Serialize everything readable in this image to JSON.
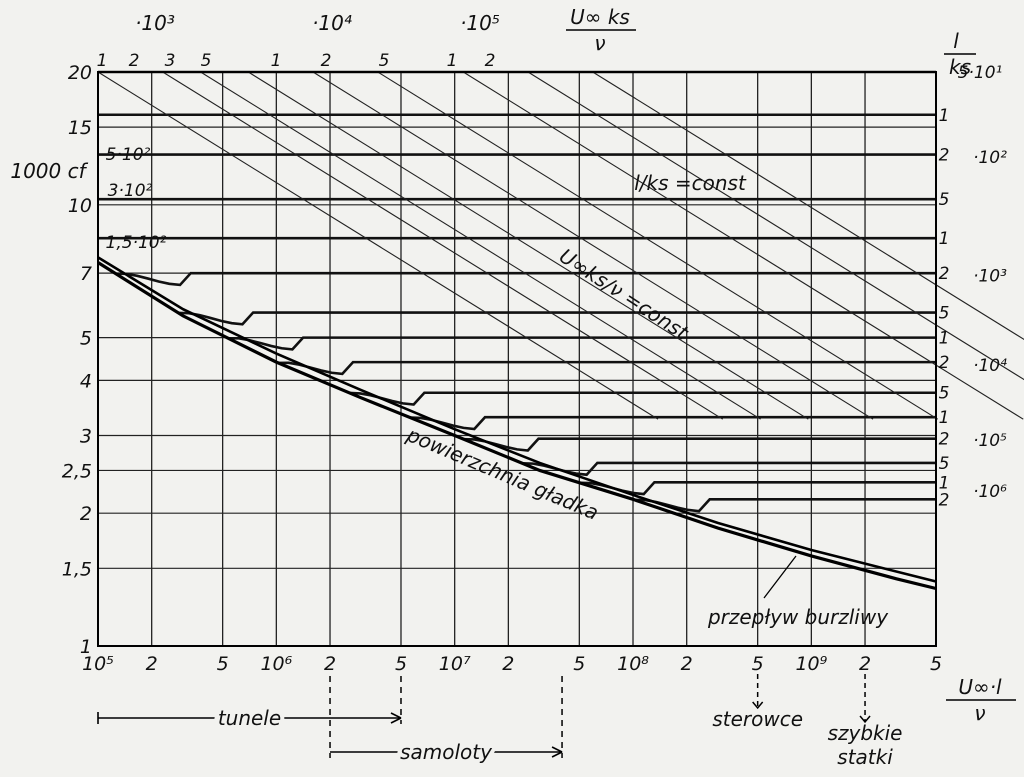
{
  "chart_data": {
    "type": "line",
    "title": "",
    "x_axis": {
      "scale": "log",
      "label_numerator": "U∞·l",
      "label_denominator": "ν",
      "range": [
        100000,
        5000000000
      ],
      "ticks": [
        {
          "value": 100000,
          "label": "10⁵"
        },
        {
          "value": 200000,
          "label": "2"
        },
        {
          "value": 500000,
          "label": "5"
        },
        {
          "value": 1000000,
          "label": "10⁶"
        },
        {
          "value": 2000000,
          "label": "2"
        },
        {
          "value": 5000000,
          "label": "5"
        },
        {
          "value": 10000000,
          "label": "10⁷"
        },
        {
          "value": 20000000,
          "label": "2"
        },
        {
          "value": 50000000,
          "label": "5"
        },
        {
          "value": 100000000,
          "label": "10⁸"
        },
        {
          "value": 200000000,
          "label": "2"
        },
        {
          "value": 500000000,
          "label": "5"
        },
        {
          "value": 1000000000,
          "label": "10⁹"
        },
        {
          "value": 2000000000,
          "label": "2"
        },
        {
          "value": 5000000000,
          "label": "5"
        }
      ]
    },
    "y_axis": {
      "scale": "log",
      "label": "1000 cf",
      "range": [
        1,
        20
      ],
      "ticks": [
        {
          "value": 1,
          "label": "1"
        },
        {
          "value": 1.5,
          "label": "1,5"
        },
        {
          "value": 2,
          "label": "2"
        },
        {
          "value": 2.5,
          "label": "2,5"
        },
        {
          "value": 3,
          "label": "3"
        },
        {
          "value": 4,
          "label": "4"
        },
        {
          "value": 5,
          "label": "5"
        },
        {
          "value": 7,
          "label": "7"
        },
        {
          "value": 10,
          "label": "10"
        },
        {
          "value": 15,
          "label": "15"
        },
        {
          "value": 20,
          "label": "20"
        }
      ]
    },
    "grid": true,
    "top_axis": {
      "label_numerator": "U∞ ks",
      "label_denominator": "ν",
      "groups": [
        {
          "label": "·10³",
          "ticks": [
            "1",
            "2",
            "3",
            "5"
          ]
        },
        {
          "label": "·10⁴",
          "ticks": [
            "1",
            "2",
            "5"
          ]
        },
        {
          "label": "·10⁵",
          "ticks": [
            "1",
            "2"
          ]
        }
      ]
    },
    "right_axis": {
      "label_numerator": "l",
      "label_denominator": "ks",
      "top_label": "5·10¹",
      "groups": [
        {
          "label": "·10²",
          "ticks": [
            "1",
            "2",
            "5"
          ]
        },
        {
          "label": "·10³",
          "ticks": [
            "1",
            "2",
            "5"
          ]
        },
        {
          "label": "·10⁴",
          "ticks": [
            "1",
            "2",
            "5"
          ]
        },
        {
          "label": "·10⁵",
          "ticks": [
            "1",
            "2",
            "5"
          ]
        },
        {
          "label": "·10⁶",
          "ticks": [
            "1",
            "2"
          ]
        }
      ]
    },
    "series": [
      {
        "name": "powierzchnia gładka",
        "x": [
          100000,
          300000,
          1000000,
          3000000,
          10000000,
          30000000,
          100000000,
          300000000,
          1000000000,
          3000000000,
          5000000000
        ],
        "y": [
          7.4,
          5.6,
          4.4,
          3.65,
          3.0,
          2.5,
          2.15,
          1.85,
          1.6,
          1.42,
          1.35
        ]
      },
      {
        "name": "przepływ burzliwy",
        "x": [
          100000,
          300000,
          1000000,
          3000000,
          10000000,
          30000000,
          100000000,
          300000000,
          1000000000,
          5000000000
        ],
        "y": [
          7.6,
          5.8,
          4.6,
          3.8,
          3.1,
          2.6,
          2.2,
          1.9,
          1.65,
          1.4
        ]
      }
    ],
    "l_ks_levels": [
      {
        "label": "5·10¹",
        "cf": 20.0
      },
      {
        "label": "1·10²",
        "cf": 16.0
      },
      {
        "label": "2·10²",
        "cf": 13.0
      },
      {
        "label": "5·10²",
        "cf": 10.3
      },
      {
        "label": "1·10³",
        "cf": 8.4
      },
      {
        "label": "2·10³",
        "cf": 7.0
      },
      {
        "label": "5·10³",
        "cf": 5.7
      },
      {
        "label": "1·10⁴",
        "cf": 5.0
      },
      {
        "label": "2·10⁴",
        "cf": 4.4
      },
      {
        "label": "5·10⁴",
        "cf": 3.75
      },
      {
        "label": "1·10⁵",
        "cf": 3.3
      },
      {
        "label": "2·10⁵",
        "cf": 2.95
      },
      {
        "label": "5·10⁵",
        "cf": 2.6
      },
      {
        "label": "1·10⁶",
        "cf": 2.35
      },
      {
        "label": "2·10⁶",
        "cf": 2.15
      }
    ],
    "re_ks_values": [
      1000,
      2000,
      3000,
      5000,
      10000,
      20000,
      50000,
      100000,
      200000
    ],
    "annotations": {
      "curve_labels_left": [
        "5·10²",
        "3·10²",
        "1,5·10²"
      ],
      "l_ks_const": "l/ks =const",
      "uks_const": "U∞ks/ν =const",
      "smooth": "powierzchnia gładka",
      "turbulent": "przepływ burzliwy"
    },
    "ranges": [
      {
        "label": "tunele",
        "from": 100000,
        "to": 5000000
      },
      {
        "label": "samoloty",
        "from": 2000000,
        "to": 40000000
      }
    ],
    "markers": [
      {
        "label": "sterowce",
        "x": 500000000
      },
      {
        "label": "szybkie statki",
        "x": 2000000000
      }
    ]
  }
}
